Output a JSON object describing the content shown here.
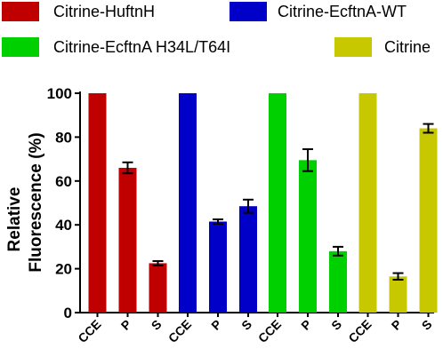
{
  "chart_data": {
    "type": "bar",
    "ylabel_line1": "Relative",
    "ylabel_line2": "Fluorescence (%)",
    "ylim": [
      0,
      100
    ],
    "yticks": [
      "0",
      "20",
      "40",
      "60",
      "80",
      "100"
    ],
    "grid": false,
    "legend_position": "top",
    "series": [
      {
        "name": "Citrine-HuftnH",
        "color": "#c00000",
        "categories": [
          "CCE",
          "P",
          "S"
        ],
        "values": [
          100,
          66,
          22.5
        ],
        "errors": [
          0,
          2.5,
          1
        ]
      },
      {
        "name": "Citrine-EcftnA-WT",
        "color": "#0000c8",
        "categories": [
          "CCE",
          "P",
          "S"
        ],
        "values": [
          100,
          41.5,
          48.5
        ],
        "errors": [
          0,
          1,
          3
        ]
      },
      {
        "name": "Citrine-EcftnA H34L/T64I",
        "color": "#00d000",
        "categories": [
          "CCE",
          "P",
          "S"
        ],
        "values": [
          100,
          69.5,
          28
        ],
        "errors": [
          0,
          5,
          2
        ]
      },
      {
        "name": "Citrine",
        "color": "#c8c800",
        "categories": [
          "CCE",
          "P",
          "S"
        ],
        "values": [
          100,
          16.5,
          84
        ],
        "errors": [
          0,
          1.5,
          2
        ]
      }
    ]
  }
}
